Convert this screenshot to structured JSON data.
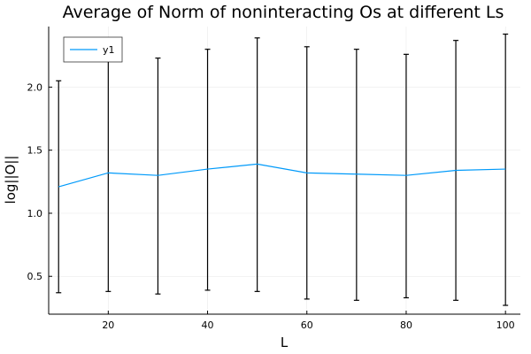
{
  "chart_data": {
    "type": "line",
    "title": "Average of Norm of noninteracting Os at different Ls",
    "xlabel": "L",
    "ylabel": "log||O||",
    "xlim": [
      8,
      103
    ],
    "ylim": [
      0.2,
      2.48
    ],
    "x_ticks": [
      20,
      40,
      60,
      80,
      100
    ],
    "y_ticks": [
      0.5,
      1.0,
      1.5,
      2.0
    ],
    "x_tick_labels": [
      "20",
      "40",
      "60",
      "80",
      "100"
    ],
    "y_tick_labels": [
      "0.5",
      "1.0",
      "1.5",
      "2.0"
    ],
    "grid": true,
    "legend_position": "top-left",
    "series": [
      {
        "name": "y1",
        "color": "#009AFA",
        "x": [
          10,
          20,
          30,
          40,
          50,
          60,
          70,
          80,
          90,
          100
        ],
        "values": [
          1.21,
          1.32,
          1.3,
          1.35,
          1.39,
          1.32,
          1.31,
          1.3,
          1.34,
          1.35
        ],
        "error_low": [
          0.37,
          0.38,
          0.36,
          0.39,
          0.38,
          0.32,
          0.31,
          0.33,
          0.31,
          0.27
        ],
        "error_high": [
          2.05,
          2.29,
          2.23,
          2.3,
          2.39,
          2.32,
          2.3,
          2.26,
          2.37,
          2.42
        ]
      }
    ]
  }
}
